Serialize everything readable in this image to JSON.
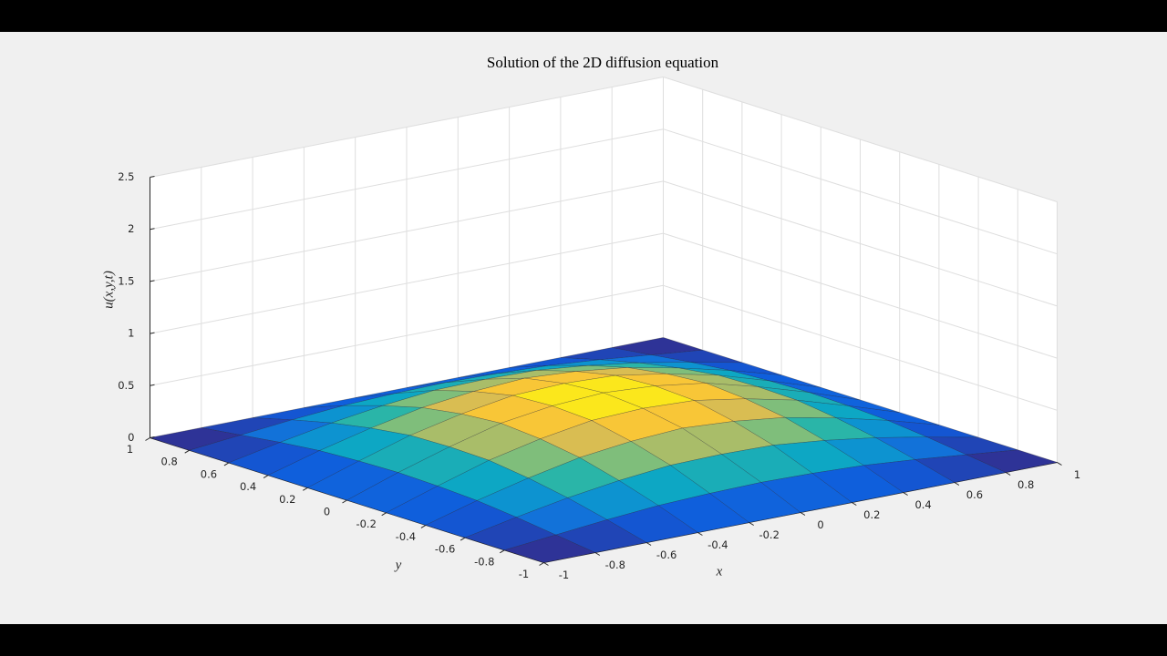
{
  "chart_data": {
    "type": "surface",
    "title": "Solution of the 2D diffusion equation",
    "xlabel": "x",
    "ylabel": "y",
    "zlabel": "u(x,y,t)",
    "x": [
      -1,
      -0.8,
      -0.6,
      -0.4,
      -0.2,
      0,
      0.2,
      0.4,
      0.6,
      0.8,
      1
    ],
    "y": [
      -1,
      -0.8,
      -0.6,
      -0.4,
      -0.2,
      0,
      0.2,
      0.4,
      0.6,
      0.8,
      1
    ],
    "z": [
      [
        0,
        0,
        0,
        0,
        0,
        0,
        0,
        0,
        0,
        0,
        0
      ],
      [
        0,
        0.05,
        0.1,
        0.14,
        0.16,
        0.17,
        0.16,
        0.14,
        0.1,
        0.05,
        0
      ],
      [
        0,
        0.1,
        0.19,
        0.26,
        0.31,
        0.32,
        0.31,
        0.26,
        0.19,
        0.1,
        0
      ],
      [
        0,
        0.14,
        0.26,
        0.36,
        0.42,
        0.45,
        0.42,
        0.36,
        0.26,
        0.14,
        0
      ],
      [
        0,
        0.16,
        0.31,
        0.42,
        0.5,
        0.52,
        0.5,
        0.42,
        0.31,
        0.16,
        0
      ],
      [
        0,
        0.17,
        0.32,
        0.45,
        0.52,
        0.55,
        0.52,
        0.45,
        0.32,
        0.17,
        0
      ],
      [
        0,
        0.16,
        0.31,
        0.42,
        0.5,
        0.52,
        0.5,
        0.42,
        0.31,
        0.16,
        0
      ],
      [
        0,
        0.14,
        0.26,
        0.36,
        0.42,
        0.45,
        0.42,
        0.36,
        0.26,
        0.14,
        0
      ],
      [
        0,
        0.1,
        0.19,
        0.26,
        0.31,
        0.32,
        0.31,
        0.26,
        0.19,
        0.1,
        0
      ],
      [
        0,
        0.05,
        0.1,
        0.14,
        0.16,
        0.17,
        0.16,
        0.14,
        0.1,
        0.05,
        0
      ],
      [
        0,
        0,
        0,
        0,
        0,
        0,
        0,
        0,
        0,
        0,
        0
      ]
    ],
    "xlim": [
      -1,
      1
    ],
    "ylim": [
      -1,
      1
    ],
    "zlim": [
      0,
      2.5
    ],
    "xticks": [
      -1,
      -0.8,
      -0.6,
      -0.4,
      -0.2,
      0,
      0.2,
      0.4,
      0.6,
      0.8,
      1
    ],
    "yticks": [
      -1,
      -0.8,
      -0.6,
      -0.4,
      -0.2,
      0,
      0.2,
      0.4,
      0.6,
      0.8,
      1
    ],
    "zticks": [
      0,
      0.5,
      1,
      1.5,
      2,
      2.5
    ],
    "grid": true,
    "colormap": [
      "#352a87",
      "#0f5cdd",
      "#1481d6",
      "#06a4ca",
      "#2eb7a4",
      "#87bf77",
      "#d1bb59",
      "#fec832",
      "#f9fb0e"
    ],
    "edgecolor": "#1a1a2a"
  }
}
